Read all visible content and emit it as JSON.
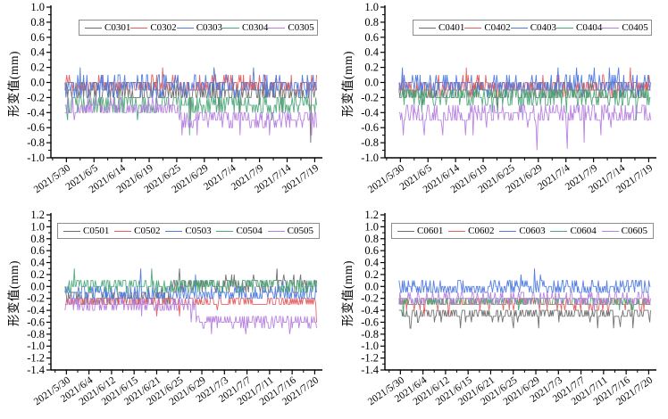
{
  "figure": {
    "background": "#ffffff",
    "axis_color": "#000000"
  },
  "palette": {
    "gray": "#6b6b6b",
    "red": "#e45c5c",
    "blue": "#4d79e0",
    "green": "#4aa877",
    "purple": "#b57ee0"
  },
  "chart_data": [
    {
      "type": "line",
      "id": "C03",
      "ylabel": "形变值(mm)",
      "ylim": [
        -1.0,
        1.0
      ],
      "ytick_step": 0.2,
      "grid": false,
      "legend_position": "top-inside",
      "ytick_labels": [
        "1.0",
        "0.8",
        "0.6",
        "0.4",
        "0.2",
        "0.0",
        "-0.2",
        "-0.4",
        "-0.6",
        "-0.8",
        "-1.0"
      ],
      "xtick_labels": [
        "2021/5/30",
        "2021/6/5",
        "2021/6/14",
        "2021/6/19",
        "2021/6/25",
        "2021/6/29",
        "2021/7/4",
        "2021/7/9",
        "2021/7/14",
        "2021/7/19"
      ],
      "series": [
        {
          "name": "C0301",
          "color": "#6b6b6b",
          "seed": 11,
          "n": 300,
          "amp": 0.13,
          "resolution": 0.1,
          "segments": [
            {
              "until": 1,
              "mean": -0.12
            }
          ],
          "extra": {
            "prob": 0.03,
            "mag": 0.2,
            "dir": -1
          },
          "spikes": [
            {
              "t": 0.975,
              "v": -0.8
            }
          ]
        },
        {
          "name": "C0302",
          "color": "#e45c5c",
          "seed": 12,
          "n": 300,
          "amp": 0.11,
          "resolution": 0.1,
          "segments": [
            {
              "until": 1,
              "mean": -0.04
            }
          ],
          "extra": {
            "prob": 0.03,
            "mag": 0.15,
            "dir": 1
          },
          "spikes": []
        },
        {
          "name": "C0303",
          "color": "#4d79e0",
          "seed": 13,
          "n": 300,
          "amp": 0.13,
          "resolution": 0.1,
          "segments": [
            {
              "until": 1,
              "mean": -0.05
            }
          ],
          "extra": {
            "prob": 0.03,
            "mag": 0.15,
            "dir": 1
          },
          "spikes": []
        },
        {
          "name": "C0304",
          "color": "#4aa877",
          "seed": 14,
          "n": 300,
          "amp": 0.12,
          "resolution": 0.1,
          "segments": [
            {
              "until": 1,
              "mean": -0.28
            }
          ],
          "extra": {
            "prob": 0.05,
            "mag": 0.22,
            "dir": -1
          },
          "spikes": []
        },
        {
          "name": "C0305",
          "color": "#b57ee0",
          "seed": 15,
          "n": 300,
          "amp": 0.11,
          "resolution": 0.1,
          "segments": [
            {
              "until": 0.45,
              "mean": -0.33
            },
            {
              "until": 1,
              "mean": -0.47
            }
          ],
          "extra": {
            "prob": 0.05,
            "mag": 0.18,
            "dir": -1
          },
          "spikes": []
        }
      ]
    },
    {
      "type": "line",
      "id": "C04",
      "ylabel": "形变值(mm)",
      "ylim": [
        -1.0,
        1.0
      ],
      "ytick_step": 0.2,
      "grid": false,
      "legend_position": "top-inside",
      "ytick_labels": [
        "1.0",
        "0.8",
        "0.6",
        "0.4",
        "0.2",
        "0.0",
        "-0.2",
        "-0.4",
        "-0.6",
        "-0.8",
        "-1.0"
      ],
      "xtick_labels": [
        "2021/5/30",
        "2021/6/5",
        "2021/6/14",
        "2021/6/19",
        "2021/6/25",
        "2021/6/29",
        "2021/7/4",
        "2021/7/9",
        "2021/7/14",
        "2021/7/19"
      ],
      "series": [
        {
          "name": "C0401",
          "color": "#6b6b6b",
          "seed": 21,
          "n": 300,
          "amp": 0.12,
          "resolution": 0.1,
          "segments": [
            {
              "until": 1,
              "mean": -0.13
            }
          ],
          "extra": {
            "prob": 0.03,
            "mag": 0.18,
            "dir": -1
          },
          "spikes": []
        },
        {
          "name": "C0402",
          "color": "#e45c5c",
          "seed": 22,
          "n": 300,
          "amp": 0.11,
          "resolution": 0.1,
          "segments": [
            {
              "until": 1,
              "mean": -0.05
            }
          ],
          "extra": {
            "prob": 0.03,
            "mag": 0.14,
            "dir": 1
          },
          "spikes": []
        },
        {
          "name": "C0403",
          "color": "#4d79e0",
          "seed": 23,
          "n": 300,
          "amp": 0.12,
          "resolution": 0.1,
          "segments": [
            {
              "until": 1,
              "mean": -0.04
            }
          ],
          "extra": {
            "prob": 0.03,
            "mag": 0.14,
            "dir": 1
          },
          "spikes": []
        },
        {
          "name": "C0404",
          "color": "#4aa877",
          "seed": 24,
          "n": 300,
          "amp": 0.11,
          "resolution": 0.1,
          "segments": [
            {
              "until": 1,
              "mean": -0.18
            }
          ],
          "extra": {
            "prob": 0.04,
            "mag": 0.16,
            "dir": -1
          },
          "spikes": []
        },
        {
          "name": "C0405",
          "color": "#b57ee0",
          "seed": 25,
          "n": 300,
          "amp": 0.13,
          "resolution": 0.1,
          "segments": [
            {
              "until": 1,
              "mean": -0.42
            }
          ],
          "extra": {
            "prob": 0.06,
            "mag": 0.2,
            "dir": -1
          },
          "spikes": [
            {
              "t": 0.1,
              "v": -0.7
            },
            {
              "t": 0.55,
              "v": -0.9
            },
            {
              "t": 0.67,
              "v": -0.88
            }
          ]
        }
      ]
    },
    {
      "type": "line",
      "id": "C05",
      "ylabel": "形变值(mm)",
      "ylim": [
        -1.4,
        1.2
      ],
      "ytick_step": 0.2,
      "grid": false,
      "legend_position": "top-inside",
      "ytick_labels": [
        "1.2",
        "1.0",
        "0.8",
        "0.6",
        "0.4",
        "0.2",
        "0.0",
        "-0.2",
        "-0.4",
        "-0.6",
        "-0.8",
        "-1.0",
        "-1.2",
        "-1.4"
      ],
      "xtick_labels": [
        "2021/5/30",
        "2021/6/4",
        "2021/6/12",
        "2021/6/15",
        "2021/6/21",
        "2021/6/25",
        "2021/6/29",
        "2021/7/3",
        "2021/7/7",
        "2021/7/11",
        "2021/7/16",
        "2021/7/20"
      ],
      "series": [
        {
          "name": "C0501",
          "color": "#6b6b6b",
          "seed": 31,
          "n": 300,
          "amp": 0.13,
          "resolution": 0.1,
          "segments": [
            {
              "until": 0.42,
              "mean": -0.18
            },
            {
              "until": 1,
              "mean": 0.03
            }
          ],
          "extra": {
            "prob": 0.03,
            "mag": 0.15,
            "dir": 1
          },
          "spikes": []
        },
        {
          "name": "C0502",
          "color": "#e45c5c",
          "seed": 32,
          "n": 300,
          "amp": 0.1,
          "resolution": 0.1,
          "segments": [
            {
              "until": 1,
              "mean": -0.25
            }
          ],
          "extra": {
            "prob": 0.03,
            "mag": 0.15,
            "dir": -1
          },
          "spikes": []
        },
        {
          "name": "C0503",
          "color": "#4d79e0",
          "seed": 33,
          "n": 300,
          "amp": 0.12,
          "resolution": 0.1,
          "segments": [
            {
              "until": 1,
              "mean": -0.13
            }
          ],
          "extra": {
            "prob": 0.02,
            "mag": 0.12,
            "dir": 1
          },
          "spikes": [
            {
              "t": 0.3,
              "v": 0.3
            }
          ]
        },
        {
          "name": "C0504",
          "color": "#4aa877",
          "seed": 34,
          "n": 300,
          "amp": 0.11,
          "resolution": 0.1,
          "segments": [
            {
              "until": 1,
              "mean": 0.02
            }
          ],
          "extra": {
            "prob": 0.03,
            "mag": 0.12,
            "dir": 1
          },
          "spikes": []
        },
        {
          "name": "C0505",
          "color": "#b57ee0",
          "seed": 35,
          "n": 300,
          "amp": 0.1,
          "resolution": 0.1,
          "segments": [
            {
              "until": 0.52,
              "mean": -0.3
            },
            {
              "until": 1,
              "mean": -0.58
            }
          ],
          "extra": {
            "prob": 0.04,
            "mag": 0.15,
            "dir": -1
          },
          "spikes": []
        }
      ]
    },
    {
      "type": "line",
      "id": "C06",
      "ylabel": "形变值(mm)",
      "ylim": [
        -1.4,
        1.2
      ],
      "ytick_step": 0.2,
      "grid": false,
      "legend_position": "top-inside",
      "ytick_labels": [
        "1.2",
        "1.0",
        "0.8",
        "0.6",
        "0.4",
        "0.2",
        "0.0",
        "-0.2",
        "-0.4",
        "-0.6",
        "-0.8",
        "-1.0",
        "-1.2",
        "-1.4"
      ],
      "xtick_labels": [
        "2021/5/30",
        "2021/6/4",
        "2021/6/12",
        "2021/6/15",
        "2021/6/21",
        "2021/6/25",
        "2021/6/29",
        "2021/7/3",
        "2021/7/7",
        "2021/7/11",
        "2021/7/16",
        "2021/7/20"
      ],
      "series": [
        {
          "name": "C0601",
          "color": "#6b6b6b",
          "seed": 41,
          "n": 300,
          "amp": 0.1,
          "resolution": 0.1,
          "segments": [
            {
              "until": 1,
              "mean": -0.46
            }
          ],
          "extra": {
            "prob": 0.05,
            "mag": 0.16,
            "dir": -1
          },
          "spikes": [
            {
              "t": 0.88,
              "v": -0.68
            }
          ]
        },
        {
          "name": "C0602",
          "color": "#e45c5c",
          "seed": 42,
          "n": 300,
          "amp": 0.09,
          "resolution": 0.1,
          "segments": [
            {
              "until": 1,
              "mean": -0.28
            }
          ],
          "extra": {
            "prob": 0.02,
            "mag": 0.1,
            "dir": -1
          },
          "spikes": []
        },
        {
          "name": "C0603",
          "color": "#4d79e0",
          "seed": 43,
          "n": 300,
          "amp": 0.11,
          "resolution": 0.1,
          "segments": [
            {
              "until": 1,
              "mean": -0.03
            }
          ],
          "extra": {
            "prob": 0.04,
            "mag": 0.13,
            "dir": 1
          },
          "spikes": []
        },
        {
          "name": "C0604",
          "color": "#4aa877",
          "seed": 44,
          "n": 300,
          "amp": 0.09,
          "resolution": 0.1,
          "segments": [
            {
              "until": 1,
              "mean": -0.25
            }
          ],
          "extra": {
            "prob": 0.02,
            "mag": 0.1,
            "dir": -1
          },
          "spikes": []
        },
        {
          "name": "C0605",
          "color": "#b57ee0",
          "seed": 45,
          "n": 300,
          "amp": 0.09,
          "resolution": 0.1,
          "segments": [
            {
              "until": 1,
              "mean": -0.2
            }
          ],
          "extra": {
            "prob": 0.02,
            "mag": 0.1,
            "dir": -1
          },
          "spikes": []
        }
      ]
    }
  ]
}
